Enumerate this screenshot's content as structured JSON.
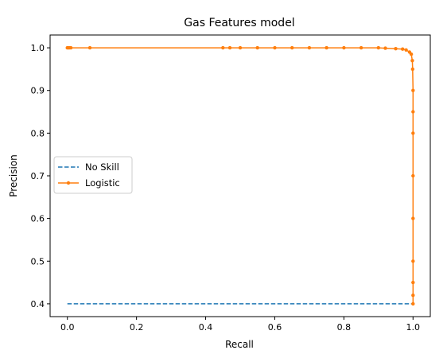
{
  "chart_data": {
    "type": "line",
    "title": "Gas Features model",
    "xlabel": "Recall",
    "ylabel": "Precision",
    "xlim": [
      -0.05,
      1.05
    ],
    "ylim": [
      0.37,
      1.03
    ],
    "xticks": [
      0.0,
      0.2,
      0.4,
      0.6,
      0.8,
      1.0
    ],
    "xtick_labels": [
      "0.0",
      "0.2",
      "0.4",
      "0.6",
      "0.8",
      "1.0"
    ],
    "yticks": [
      0.4,
      0.5,
      0.6,
      0.7,
      0.8,
      0.9,
      1.0
    ],
    "ytick_labels": [
      "0.4",
      "0.5",
      "0.6",
      "0.7",
      "0.8",
      "0.9",
      "1.0"
    ],
    "grid": false,
    "legend": {
      "position": "center-left"
    },
    "colors": {
      "no_skill": "#1f77b4",
      "logistic": "#ff7f0e"
    },
    "series": [
      {
        "name": "No Skill",
        "style": "dashed",
        "marker": "none",
        "x": [
          0.0,
          1.0
        ],
        "y": [
          0.4,
          0.4
        ]
      },
      {
        "name": "Logistic",
        "style": "solid",
        "marker": "dot",
        "x": [
          0.0,
          0.003,
          0.006,
          0.01,
          0.065,
          0.45,
          0.47,
          0.5,
          0.55,
          0.6,
          0.65,
          0.7,
          0.75,
          0.8,
          0.85,
          0.9,
          0.92,
          0.95,
          0.97,
          0.98,
          0.99,
          0.995,
          0.998,
          0.999,
          1.0,
          1.0,
          1.0,
          1.0,
          1.0,
          1.0,
          1.0,
          1.0,
          1.0
        ],
        "y": [
          1.0,
          1.0,
          1.0,
          1.0,
          1.0,
          1.0,
          1.0,
          1.0,
          1.0,
          1.0,
          1.0,
          1.0,
          1.0,
          1.0,
          1.0,
          1.0,
          0.999,
          0.998,
          0.997,
          0.995,
          0.99,
          0.985,
          0.97,
          0.95,
          0.9,
          0.85,
          0.8,
          0.7,
          0.6,
          0.5,
          0.45,
          0.42,
          0.4
        ]
      }
    ]
  }
}
